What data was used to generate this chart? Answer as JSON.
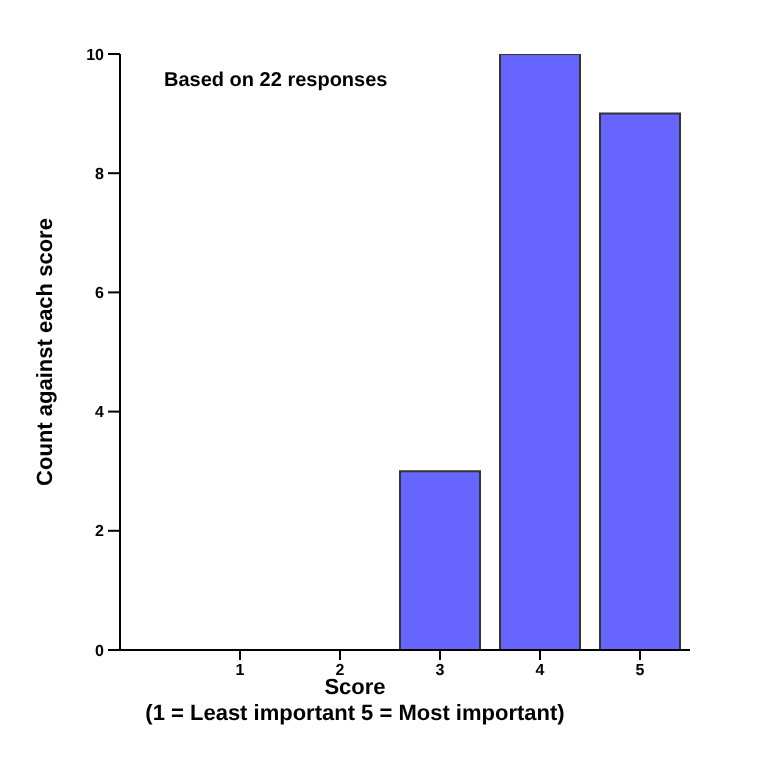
{
  "chart_data": {
    "type": "bar",
    "categories": [
      "1",
      "2",
      "3",
      "4",
      "5"
    ],
    "values": [
      0,
      0,
      3,
      10,
      9
    ],
    "color": "#6666ff",
    "ylim": [
      0,
      10
    ],
    "yticks": [
      0,
      2,
      4,
      6,
      8,
      10
    ],
    "xlabel": "Score\n(1 = Least important 5 = Most important)",
    "ylabel": "Count against each score",
    "annotations": [
      "Based on 22 responses"
    ],
    "grid": false,
    "legend": false
  }
}
